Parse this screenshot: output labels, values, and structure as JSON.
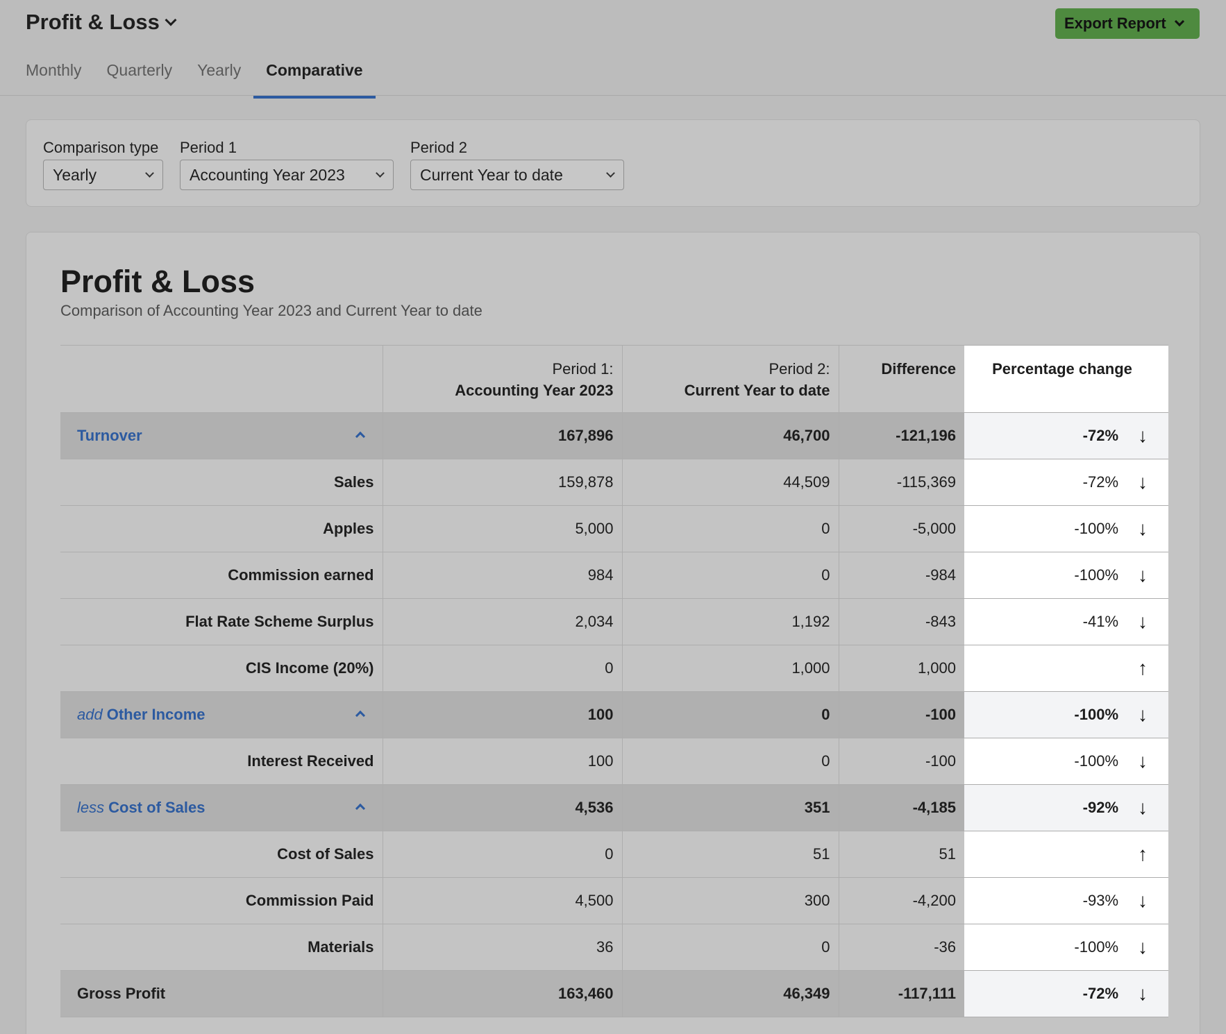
{
  "header": {
    "title": "Profit & Loss",
    "export_label": "Export Report",
    "tabs": [
      {
        "label": "Monthly",
        "active": false
      },
      {
        "label": "Quarterly",
        "active": false
      },
      {
        "label": "Yearly",
        "active": false
      },
      {
        "label": "Comparative",
        "active": true
      }
    ]
  },
  "filters": {
    "comparison_type": {
      "label": "Comparison type",
      "value": "Yearly"
    },
    "period1": {
      "label": "Period 1",
      "value": "Accounting Year 2023"
    },
    "period2": {
      "label": "Period 2",
      "value": "Current Year to date"
    }
  },
  "report": {
    "title": "Profit & Loss",
    "subtitle": "Comparison of Accounting Year 2023 and Current Year to date",
    "columns": {
      "p1_line1": "Period 1:",
      "p1_line2": "Accounting Year 2023",
      "p2_line1": "Period 2:",
      "p2_line2": "Current Year to date",
      "difference": "Difference",
      "pct": "Percentage change"
    },
    "rows": [
      {
        "type": "group",
        "prefix": "",
        "label": "Turnover",
        "p1": "167,896",
        "p2": "46,700",
        "diff": "-121,196",
        "pct": "-72%",
        "arrow": "↓"
      },
      {
        "type": "item",
        "label": "Sales",
        "p1": "159,878",
        "p2": "44,509",
        "diff": "-115,369",
        "pct": "-72%",
        "arrow": "↓"
      },
      {
        "type": "item",
        "label": "Apples",
        "p1": "5,000",
        "p2": "0",
        "diff": "-5,000",
        "pct": "-100%",
        "arrow": "↓"
      },
      {
        "type": "item",
        "label": "Commission earned",
        "p1": "984",
        "p2": "0",
        "diff": "-984",
        "pct": "-100%",
        "arrow": "↓"
      },
      {
        "type": "item",
        "label": "Flat Rate Scheme Surplus",
        "p1": "2,034",
        "p2": "1,192",
        "diff": "-843",
        "pct": "-41%",
        "arrow": "↓"
      },
      {
        "type": "item",
        "label": "CIS Income (20%)",
        "p1": "0",
        "p2": "1,000",
        "diff": "1,000",
        "pct": "",
        "arrow": "↑"
      },
      {
        "type": "group",
        "prefix": "add",
        "label": "Other Income",
        "p1": "100",
        "p2": "0",
        "diff": "-100",
        "pct": "-100%",
        "arrow": "↓"
      },
      {
        "type": "item",
        "label": "Interest Received",
        "p1": "100",
        "p2": "0",
        "diff": "-100",
        "pct": "-100%",
        "arrow": "↓"
      },
      {
        "type": "group",
        "prefix": "less",
        "label": "Cost of Sales",
        "p1": "4,536",
        "p2": "351",
        "diff": "-4,185",
        "pct": "-92%",
        "arrow": "↓"
      },
      {
        "type": "item",
        "label": "Cost of Sales",
        "p1": "0",
        "p2": "51",
        "diff": "51",
        "pct": "",
        "arrow": "↑"
      },
      {
        "type": "item",
        "label": "Commission Paid",
        "p1": "4,500",
        "p2": "300",
        "diff": "-4,200",
        "pct": "-93%",
        "arrow": "↓"
      },
      {
        "type": "item",
        "label": "Materials",
        "p1": "36",
        "p2": "0",
        "diff": "-36",
        "pct": "-100%",
        "arrow": "↓"
      },
      {
        "type": "total",
        "label": "Gross Profit",
        "p1": "163,460",
        "p2": "46,349",
        "diff": "-117,111",
        "pct": "-72%",
        "arrow": "↓"
      }
    ]
  },
  "colors": {
    "accent": "#2c5aa0",
    "export_button": "#4e8a3f"
  }
}
